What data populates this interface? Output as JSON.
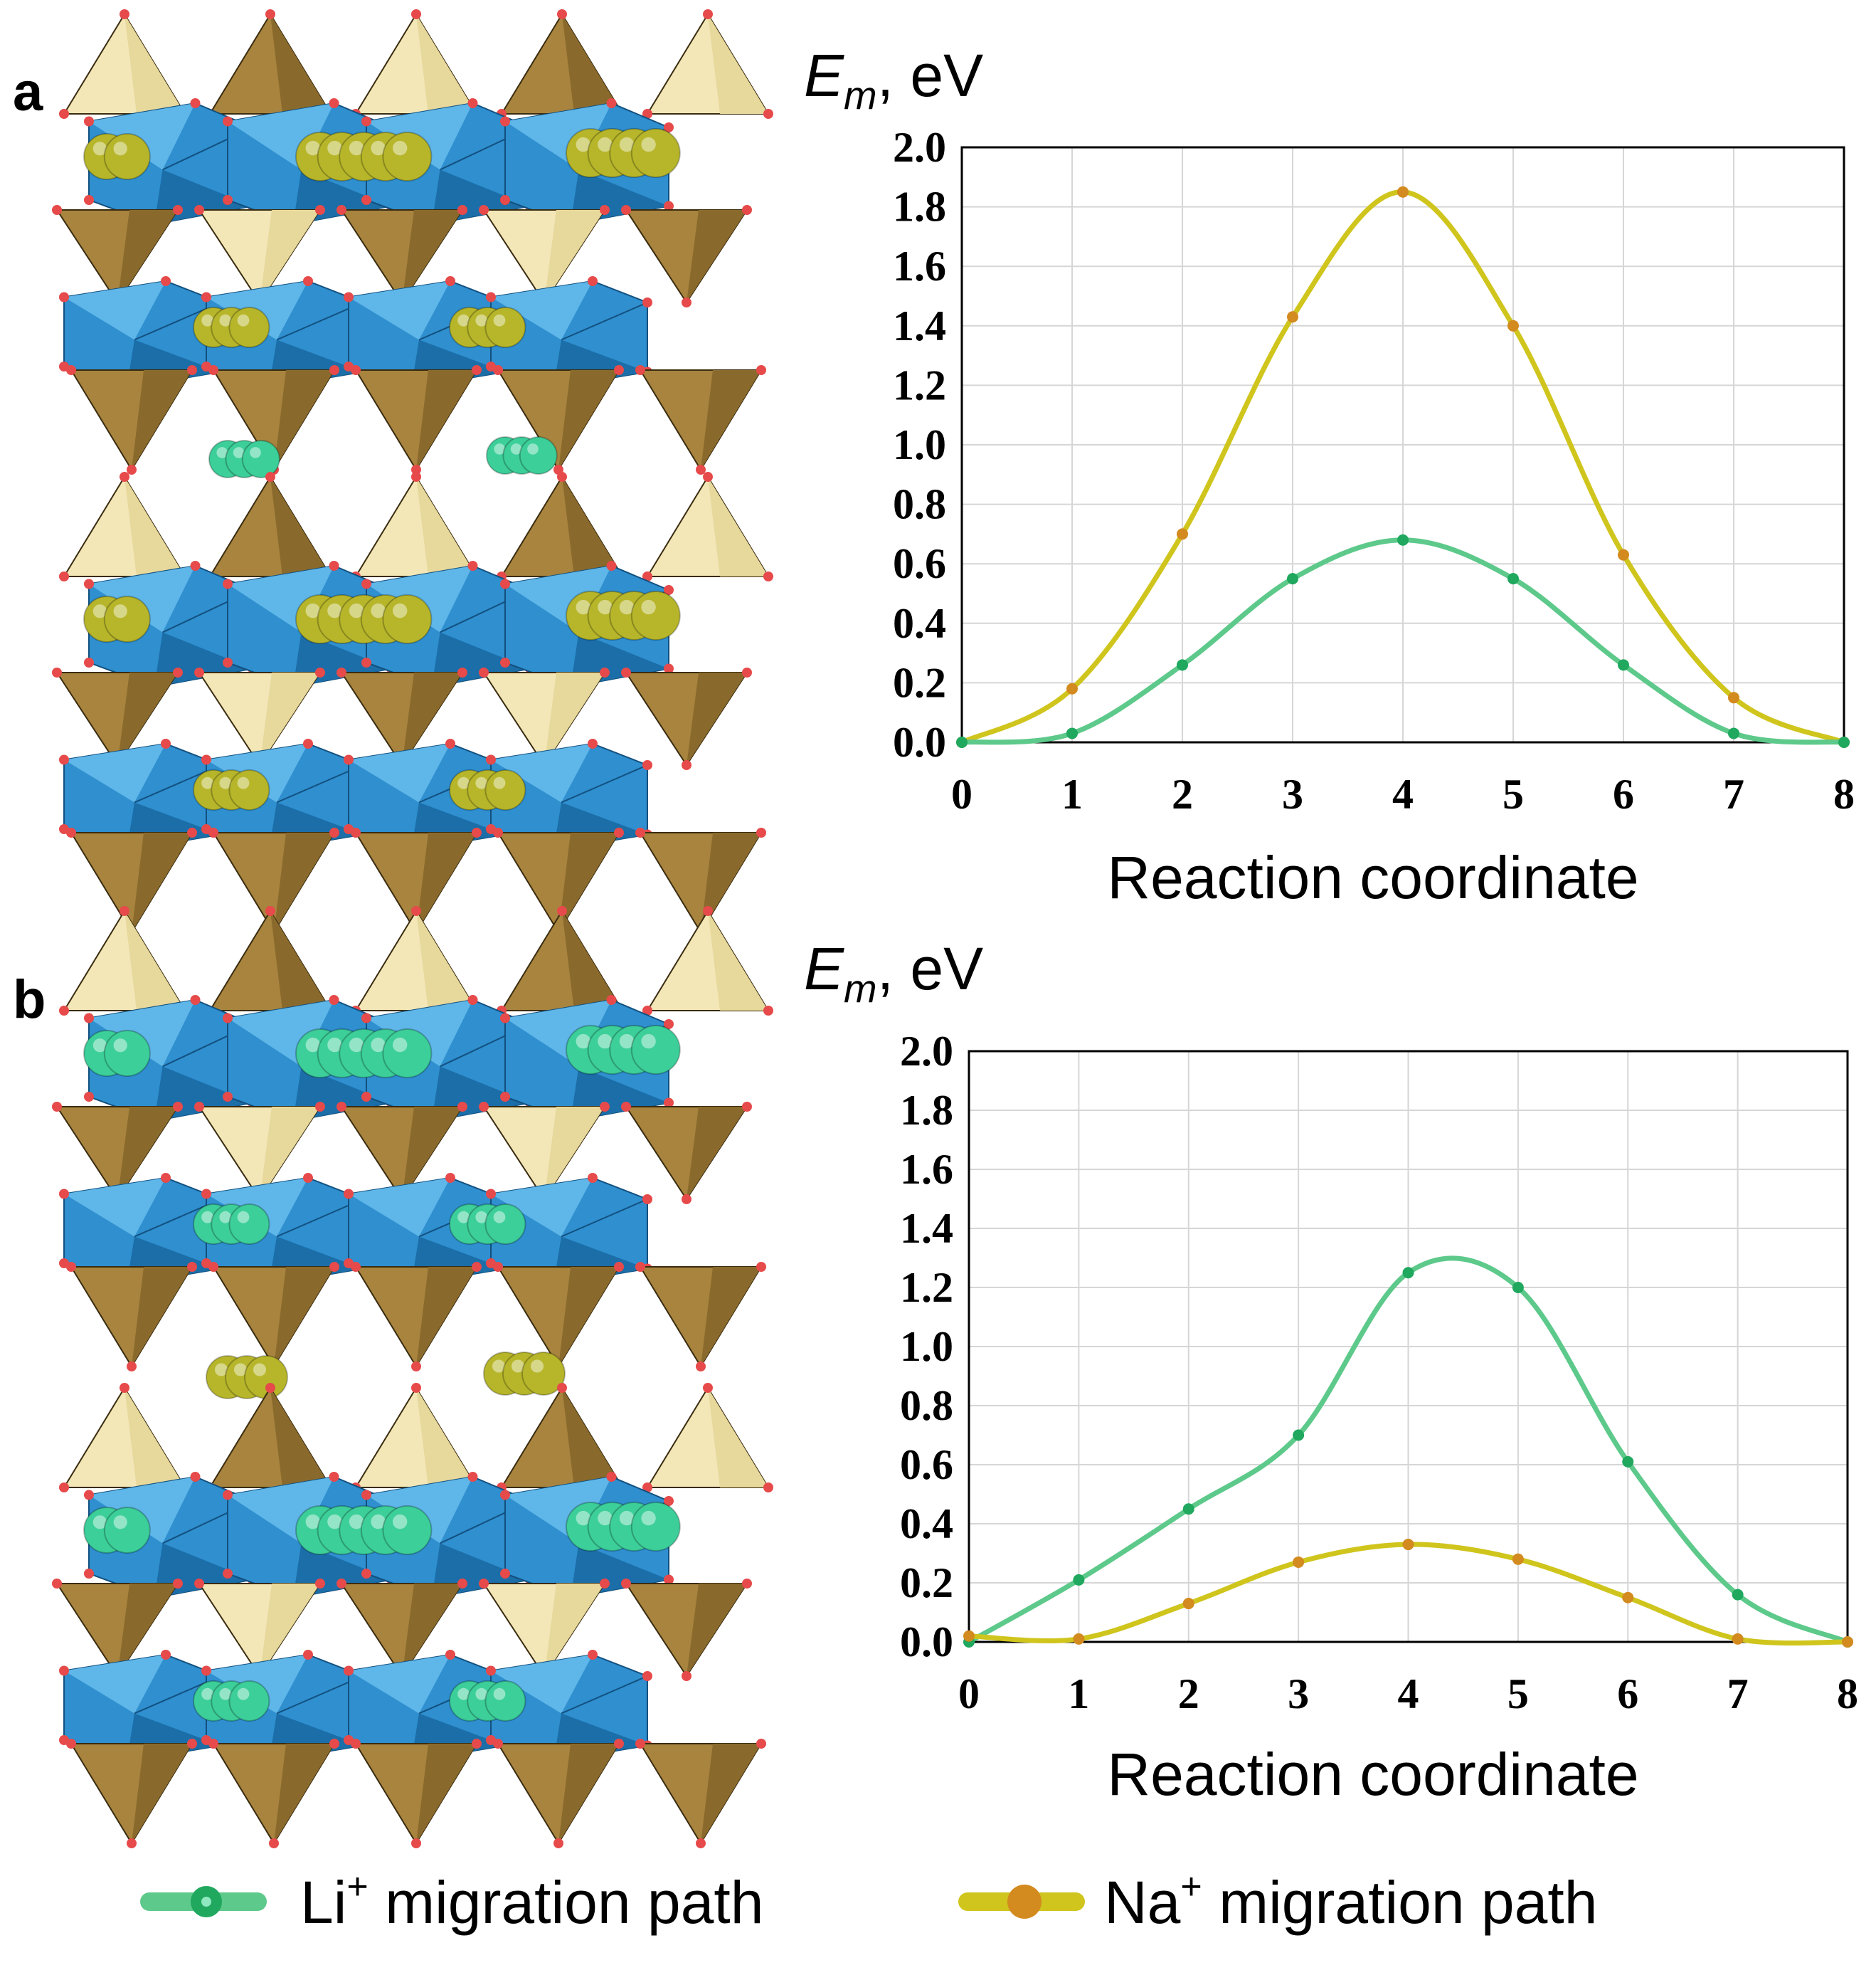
{
  "panels": [
    {
      "letter": "a"
    },
    {
      "letter": "b"
    }
  ],
  "legend": {
    "items": [
      {
        "label": "Li",
        "sup": "+",
        "rest": " migration path",
        "color": "#5dc98a"
      },
      {
        "label": "Na",
        "sup": "+",
        "rest": " migration path",
        "color": "#c9c21a"
      }
    ]
  },
  "colors": {
    "li_line": "#5dc98a",
    "li_dot": "#1fa85e",
    "na_line": "#cfc51d",
    "na_dot": "#d38a1e",
    "octahedron": "#2f8fcf",
    "tetra_dark": "#a8843e",
    "tetra_light": "#f3e7b8",
    "oxygen": "#e64a4a",
    "na_sphere": "#b7b62a",
    "li_sphere": "#3ccf9a"
  },
  "chart_data": [
    {
      "type": "line",
      "panel": "a",
      "ylabel_main": "E",
      "ylabel_sub": "m",
      "ylabel_unit": ", eV",
      "xlabel": "Reaction coordinate",
      "xlim": [
        0,
        8
      ],
      "ylim": [
        0,
        2.0
      ],
      "xticks": [
        "0",
        "1",
        "2",
        "3",
        "4",
        "5",
        "6",
        "7",
        "8"
      ],
      "yticks": [
        "0.0",
        "0.2",
        "0.4",
        "0.6",
        "0.8",
        "1.0",
        "1.2",
        "1.4",
        "1.6",
        "1.8",
        "2.0"
      ],
      "grid": true,
      "series": [
        {
          "key": "na",
          "x": [
            0,
            1,
            2,
            3,
            4,
            5,
            6,
            7,
            8
          ],
          "values": [
            0.0,
            0.18,
            0.7,
            1.43,
            1.85,
            1.4,
            0.63,
            0.15,
            0.0
          ]
        },
        {
          "key": "li",
          "x": [
            0,
            1,
            2,
            3,
            4,
            5,
            6,
            7,
            8
          ],
          "values": [
            0.0,
            0.03,
            0.26,
            0.55,
            0.68,
            0.55,
            0.26,
            0.03,
            0.0
          ]
        }
      ]
    },
    {
      "type": "line",
      "panel": "b",
      "ylabel_main": "E",
      "ylabel_sub": "m",
      "ylabel_unit": ", eV",
      "xlabel": "Reaction coordinate",
      "xlim": [
        0,
        8
      ],
      "ylim": [
        0,
        2.0
      ],
      "xticks": [
        "0",
        "1",
        "2",
        "3",
        "4",
        "5",
        "6",
        "7",
        "8"
      ],
      "yticks": [
        "0.0",
        "0.2",
        "0.4",
        "0.6",
        "0.8",
        "1.0",
        "1.2",
        "1.4",
        "1.6",
        "1.8",
        "2.0"
      ],
      "grid": true,
      "series": [
        {
          "key": "li",
          "x": [
            0,
            1,
            2,
            3,
            4,
            5,
            6,
            7,
            8
          ],
          "values": [
            0.0,
            0.21,
            0.45,
            0.7,
            1.25,
            1.2,
            0.61,
            0.16,
            0.0
          ]
        },
        {
          "key": "na",
          "x": [
            0,
            1,
            2,
            3,
            4,
            5,
            6,
            7,
            8
          ],
          "values": [
            0.02,
            0.01,
            0.13,
            0.27,
            0.33,
            0.28,
            0.15,
            0.01,
            0.0
          ]
        }
      ]
    }
  ]
}
